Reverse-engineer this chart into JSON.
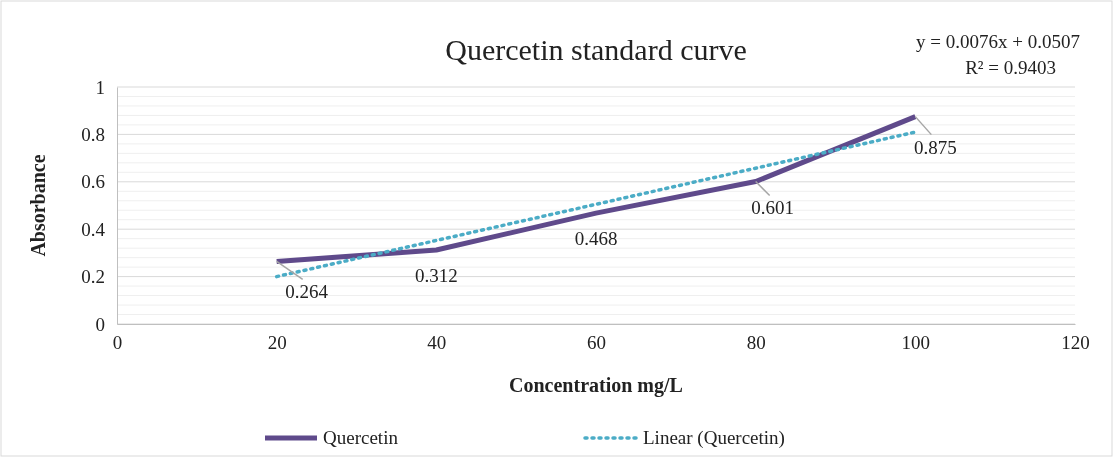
{
  "chart_data": {
    "type": "line",
    "title": "Quercetin standard curve",
    "xlabel": "Concentration mg/L",
    "ylabel": "Absorbance",
    "x": [
      20,
      40,
      60,
      80,
      100
    ],
    "series": [
      {
        "name": "Quercetin",
        "color": "#5f4a8b",
        "values": [
          0.264,
          0.312,
          0.468,
          0.601,
          0.875
        ],
        "value_labels": [
          "0.264",
          "0.312",
          "0.468",
          "0.601",
          "0.875"
        ],
        "line_style": "solid"
      },
      {
        "name": "Linear (Quercetin)",
        "type": "line",
        "color": "#4bacc6",
        "x": [
          20,
          100
        ],
        "values": [
          0.2,
          0.81
        ],
        "line_style": "dotted"
      }
    ],
    "xlim": [
      0,
      120
    ],
    "xticks": [
      0,
      20,
      40,
      60,
      80,
      100,
      120
    ],
    "ylim": [
      0,
      1
    ],
    "yticks": [
      0,
      {
        "value": 0.04,
        "label": null
      },
      {
        "value": 0.08,
        "label": null
      },
      {
        "value": 0.12,
        "label": null
      },
      {
        "value": 0.16,
        "label": null
      },
      0.2,
      {
        "value": 0.24,
        "label": null
      },
      {
        "value": 0.28,
        "label": null
      },
      {
        "value": 0.32,
        "label": null
      },
      {
        "value": 0.36,
        "label": null
      },
      0.4,
      {
        "value": 0.44,
        "label": null
      },
      {
        "value": 0.48,
        "label": null
      },
      {
        "value": 0.52,
        "label": null
      },
      {
        "value": 0.56,
        "label": null
      },
      0.6,
      {
        "value": 0.64,
        "label": null
      },
      {
        "value": 0.68,
        "label": null
      },
      {
        "value": 0.72,
        "label": null
      },
      {
        "value": 0.76,
        "label": null
      },
      0.8,
      {
        "value": 0.84,
        "label": null
      },
      {
        "value": 0.88,
        "label": null
      },
      {
        "value": 0.92,
        "label": null
      },
      {
        "value": 0.96,
        "label": null
      },
      1
    ],
    "grid": "y",
    "legend": "bottom",
    "marker": "none",
    "annotations": [
      "y = 0.0076x + 0.0507",
      "R² = 0.9403"
    ]
  }
}
